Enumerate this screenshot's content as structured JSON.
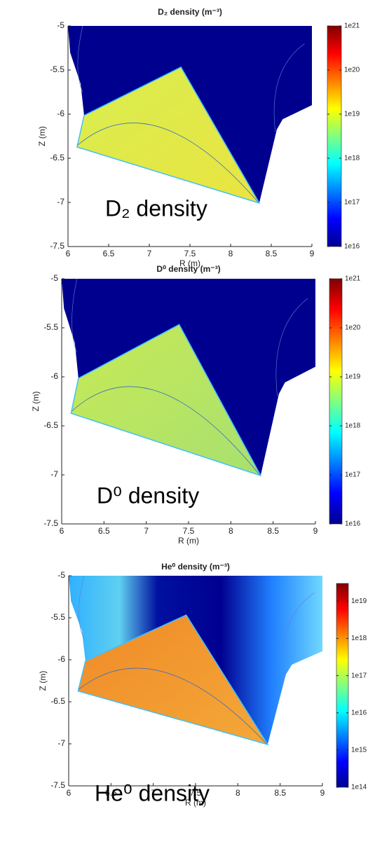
{
  "chart_data": [
    {
      "type": "heatmap",
      "title": "D₂ density (m⁻³)",
      "annotation": "D₂ density",
      "xlabel": "R (m)",
      "ylabel": "Z (m)",
      "xlim": [
        6,
        9
      ],
      "ylim": [
        -7.5,
        -5
      ],
      "xticks": [
        6,
        6.5,
        7,
        7.5,
        8,
        8.5,
        9
      ],
      "yticks": [
        -7.5,
        -7,
        -6.5,
        -6,
        -5.5,
        -5
      ],
      "clim": [
        1e+16,
        1e+21
      ],
      "log_scale": true,
      "cticks": [
        {
          "value": 1e+16,
          "label": "1e16"
        },
        {
          "value": 1e+17,
          "label": "1e17"
        },
        {
          "value": 1e+18,
          "label": "1e18"
        },
        {
          "value": 1e+19,
          "label": "1e19"
        },
        {
          "value": 1e+20,
          "label": "1e20"
        },
        {
          "value": 1e+21,
          "label": "1e21"
        }
      ]
    },
    {
      "type": "heatmap",
      "title": "D⁰ density (m⁻³)",
      "annotation": "D⁰ density",
      "xlabel": "R (m)",
      "ylabel": "Z (m)",
      "xlim": [
        6,
        9
      ],
      "ylim": [
        -7.5,
        -5
      ],
      "xticks": [
        6,
        6.5,
        7,
        7.5,
        8,
        8.5,
        9
      ],
      "yticks": [
        -7.5,
        -7,
        -6.5,
        -6,
        -5.5,
        -5
      ],
      "clim": [
        1e+16,
        1e+21
      ],
      "log_scale": true,
      "cticks": [
        {
          "value": 1e+16,
          "label": "1e16"
        },
        {
          "value": 1e+17,
          "label": "1e17"
        },
        {
          "value": 1e+18,
          "label": "1e18"
        },
        {
          "value": 1e+19,
          "label": "1e19"
        },
        {
          "value": 1e+20,
          "label": "1e20"
        },
        {
          "value": 1e+21,
          "label": "1e21"
        }
      ]
    },
    {
      "type": "heatmap",
      "title": "He⁰ density (m⁻³)",
      "annotation": "He⁰ density",
      "xlabel": "R (m)",
      "ylabel": "Z (m)",
      "xlim": [
        6,
        9
      ],
      "ylim": [
        -7.5,
        -5
      ],
      "xticks": [
        6,
        6.5,
        7,
        7.5,
        8,
        8.5,
        9
      ],
      "yticks": [
        -7.5,
        -7,
        -6.5,
        -6,
        -5.5,
        -5
      ],
      "clim": [
        100000000000000.0,
        3e+19
      ],
      "log_scale": true,
      "cticks": [
        {
          "value": 100000000000000.0,
          "label": "1e14"
        },
        {
          "value": 1000000000000000.0,
          "label": "1e15"
        },
        {
          "value": 1e+16,
          "label": "1e16"
        },
        {
          "value": 1e+17,
          "label": "1e17"
        },
        {
          "value": 1e+18,
          "label": "1e18"
        },
        {
          "value": 1e+19,
          "label": "1e19"
        }
      ]
    }
  ]
}
